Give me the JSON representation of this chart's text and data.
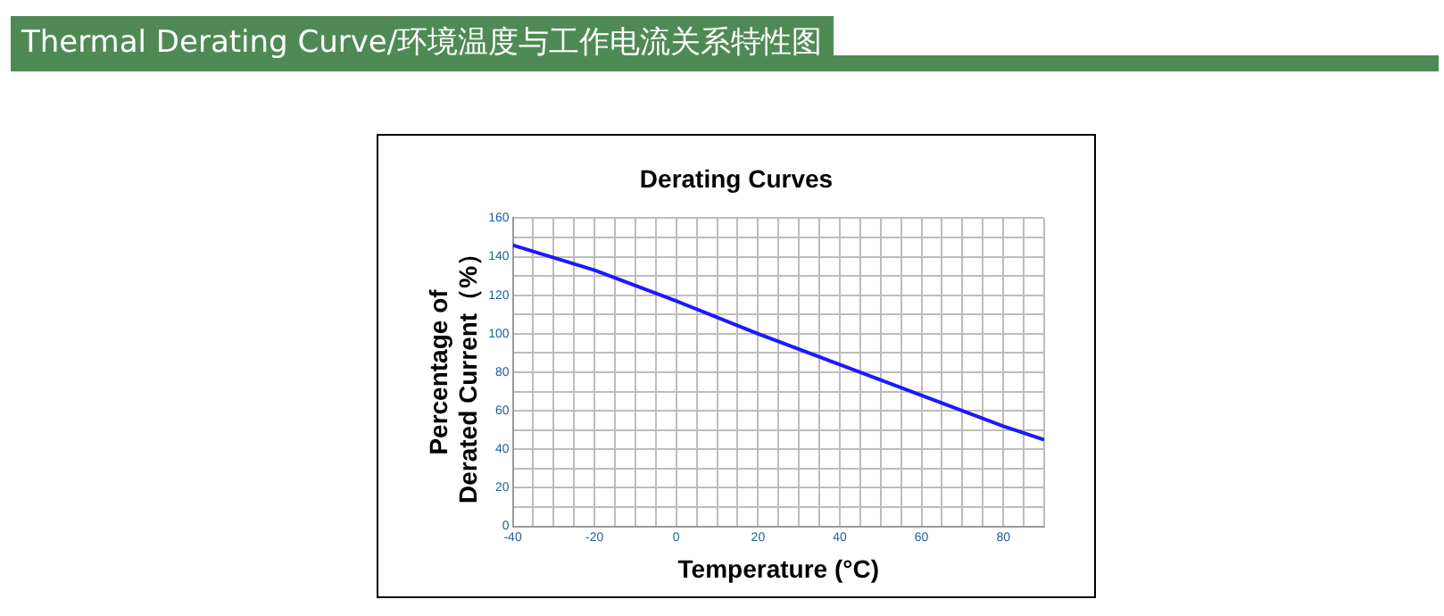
{
  "chart_data": {
    "type": "line",
    "title": "Thermal Derating Curve/环境温度与工作电流关系特性图",
    "subtitle": "Derating Curves",
    "xlabel": "Temperature (°C)",
    "ylabel": "Percentage of\nDerated Current（%）",
    "x": [
      -40,
      -20,
      0,
      20,
      40,
      60,
      80,
      90
    ],
    "series": [
      {
        "color": "#1a1aff",
        "values": [
          146,
          133,
          117,
          100,
          84,
          68,
          52,
          45
        ]
      }
    ],
    "xlim": [
      -40,
      90
    ],
    "xticks": [
      -40,
      {
        "value": -35,
        "label": null
      },
      {
        "value": -30,
        "label": null
      },
      {
        "value": -25,
        "label": null
      },
      -20,
      {
        "value": -15,
        "label": null
      },
      {
        "value": -10,
        "label": null
      },
      {
        "value": -5,
        "label": null
      },
      0,
      {
        "value": 5,
        "label": null
      },
      {
        "value": 10,
        "label": null
      },
      {
        "value": 15,
        "label": null
      },
      20,
      {
        "value": 25,
        "label": null
      },
      {
        "value": 30,
        "label": null
      },
      {
        "value": 35,
        "label": null
      },
      40,
      {
        "value": 45,
        "label": null
      },
      {
        "value": 50,
        "label": null
      },
      {
        "value": 55,
        "label": null
      },
      60,
      {
        "value": 65,
        "label": null
      },
      {
        "value": 70,
        "label": null
      },
      {
        "value": 75,
        "label": null
      },
      80,
      {
        "value": 85,
        "label": null
      },
      {
        "value": 90,
        "label": null
      }
    ],
    "ylim": [
      0,
      160
    ],
    "yticks": [
      0,
      {
        "value": 10,
        "label": null
      },
      20,
      {
        "value": 30,
        "label": null
      },
      40,
      {
        "value": 50,
        "label": null
      },
      60,
      {
        "value": 70,
        "label": null
      },
      80,
      {
        "value": 90,
        "label": null
      },
      100,
      {
        "value": 110,
        "label": null
      },
      120,
      {
        "value": 130,
        "label": null
      },
      140,
      {
        "value": 150,
        "label": null
      },
      160
    ],
    "grid": true,
    "legend": false,
    "marker": "none",
    "line_style": "solid"
  }
}
